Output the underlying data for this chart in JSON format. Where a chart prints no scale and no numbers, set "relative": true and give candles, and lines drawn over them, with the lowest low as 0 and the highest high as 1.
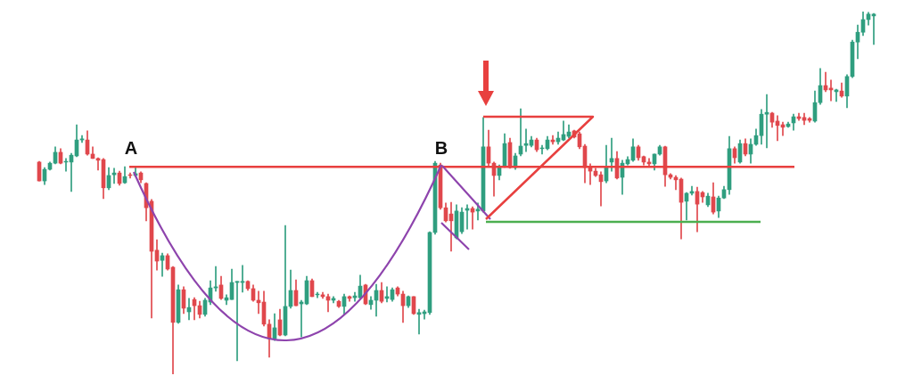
{
  "chart_data": {
    "type": "candlestick",
    "relative": true,
    "categories": [
      null,
      null,
      null,
      null,
      null,
      null,
      null,
      null,
      null,
      null,
      null,
      null,
      null,
      null,
      null,
      null,
      null,
      null,
      null,
      null,
      null,
      null,
      null,
      null,
      null,
      null,
      null,
      null,
      null,
      null,
      null,
      null,
      null,
      null,
      null,
      null,
      null,
      null,
      null,
      null,
      null,
      null,
      null,
      null,
      null,
      null,
      null,
      null,
      null,
      null,
      null,
      null,
      null,
      null,
      null,
      null,
      null,
      null,
      null,
      null,
      null,
      null,
      null,
      null,
      null,
      null,
      null,
      null,
      null,
      null,
      null,
      null,
      null,
      null,
      null,
      null,
      null,
      null,
      null,
      null,
      null,
      null,
      null,
      null,
      null,
      null,
      null,
      null,
      null,
      null,
      null,
      null,
      null,
      null,
      null,
      null,
      null,
      null,
      null,
      null,
      null,
      null,
      null,
      null,
      null,
      null,
      null,
      null,
      null,
      null,
      null,
      null,
      null,
      null,
      null,
      null,
      null,
      null,
      null,
      null,
      null,
      null,
      null,
      null,
      null,
      null,
      null,
      null,
      null,
      null,
      null,
      null,
      null,
      null,
      null,
      null,
      null,
      null,
      null,
      null,
      null,
      null,
      null,
      null,
      null,
      null,
      null,
      null,
      null,
      null,
      null,
      null,
      null,
      null,
      null,
      null,
      null
    ],
    "ohlc": [
      [
        0.585,
        0.587,
        0.533,
        0.533
      ],
      [
        0.533,
        0.57,
        0.523,
        0.565
      ],
      [
        0.565,
        0.585,
        0.563,
        0.582
      ],
      [
        0.582,
        0.627,
        0.58,
        0.612
      ],
      [
        0.612,
        0.622,
        0.58,
        0.582
      ],
      [
        0.585,
        0.595,
        0.56,
        0.587
      ],
      [
        0.585,
        0.609,
        0.504,
        0.604
      ],
      [
        0.602,
        0.688,
        0.6,
        0.646
      ],
      [
        0.646,
        0.658,
        0.639,
        0.649
      ],
      [
        0.646,
        0.671,
        0.604,
        0.607
      ],
      [
        0.607,
        0.627,
        0.595,
        0.595
      ],
      [
        0.595,
        0.597,
        0.563,
        0.59
      ],
      [
        0.592,
        0.595,
        0.484,
        0.514
      ],
      [
        0.514,
        0.57,
        0.509,
        0.548
      ],
      [
        0.55,
        0.568,
        0.526,
        0.555
      ],
      [
        0.555,
        0.56,
        0.521,
        0.526
      ],
      [
        0.528,
        0.572,
        0.526,
        0.545
      ],
      [
        0.55,
        0.555,
        0.541,
        0.548
      ],
      [
        0.548,
        0.57,
        0.545,
        0.553
      ],
      [
        0.555,
        0.558,
        0.528,
        0.536
      ],
      [
        0.526,
        0.528,
        0.423,
        0.459
      ],
      [
        0.477,
        0.482,
        0.155,
        0.339
      ],
      [
        0.342,
        0.371,
        0.287,
        0.312
      ],
      [
        0.314,
        0.334,
        0.27,
        0.327
      ],
      [
        0.327,
        0.332,
        0.287,
        0.29
      ],
      [
        0.295,
        0.297,
        0,
        0.143
      ],
      [
        0.143,
        0.246,
        0.14,
        0.233
      ],
      [
        0.233,
        0.241,
        0.167,
        0.182
      ],
      [
        0.172,
        0.209,
        0.15,
        0.184
      ],
      [
        0.206,
        0.211,
        0.15,
        0.189
      ],
      [
        0.189,
        0.201,
        0.155,
        0.165
      ],
      [
        0.165,
        0.209,
        0.16,
        0.204
      ],
      [
        0.199,
        0.258,
        0.192,
        0.238
      ],
      [
        0.238,
        0.297,
        0.229,
        0.241
      ],
      [
        0.246,
        0.27,
        0.206,
        0.209
      ],
      [
        0.204,
        0.219,
        0.192,
        0.211
      ],
      [
        0.206,
        0.29,
        0.206,
        0.253
      ],
      [
        0.253,
        0.256,
        0.037,
        0.256
      ],
      [
        0.253,
        0.3,
        0.226,
        0.256
      ],
      [
        0.256,
        0.258,
        0.231,
        0.236
      ],
      [
        0.236,
        0.246,
        0.201,
        0.204
      ],
      [
        0.204,
        0.229,
        0.167,
        0.197
      ],
      [
        0.199,
        0.229,
        0.133,
        0.138
      ],
      [
        0.138,
        0.15,
        0.047,
        0.098
      ],
      [
        0.098,
        0.167,
        0.093,
        0.128
      ],
      [
        0.15,
        0.179,
        0.106,
        0.108
      ],
      [
        0.108,
        0.41,
        0.106,
        0.187
      ],
      [
        0.187,
        0.287,
        0.182,
        0.231
      ],
      [
        0.231,
        0.26,
        0.189,
        0.189
      ],
      [
        0.194,
        0.204,
        0.103,
        0.199
      ],
      [
        0.194,
        0.27,
        0.192,
        0.258
      ],
      [
        0.258,
        0.263,
        0.214,
        0.214
      ],
      [
        0.219,
        0.226,
        0.211,
        0.221
      ],
      [
        0.219,
        0.226,
        0.209,
        0.214
      ],
      [
        0.214,
        0.221,
        0.172,
        0.204
      ],
      [
        0.204,
        0.214,
        0.197,
        0.209
      ],
      [
        0.201,
        0.204,
        0.184,
        0.187
      ],
      [
        0.187,
        0.221,
        0.165,
        0.214
      ],
      [
        0.214,
        0.216,
        0.201,
        0.209
      ],
      [
        0.211,
        0.226,
        0.201,
        0.216
      ],
      [
        0.211,
        0.273,
        0.209,
        0.243
      ],
      [
        0.246,
        0.248,
        0.192,
        0.194
      ],
      [
        0.192,
        0.214,
        0.179,
        0.204
      ],
      [
        0.204,
        0.248,
        0.16,
        0.231
      ],
      [
        0.231,
        0.253,
        0.197,
        0.201
      ],
      [
        0.209,
        0.241,
        0.199,
        0.214
      ],
      [
        0.206,
        0.238,
        0.201,
        0.233
      ],
      [
        0.238,
        0.241,
        0.216,
        0.221
      ],
      [
        0.221,
        0.229,
        0.143,
        0.189
      ],
      [
        0.189,
        0.216,
        0.184,
        0.214
      ],
      [
        0.214,
        0.214,
        0.165,
        0.167
      ],
      [
        0.165,
        0.179,
        0.111,
        0.17
      ],
      [
        0.167,
        0.177,
        0.152,
        0.172
      ],
      [
        0.17,
        0.393,
        0.165,
        0.391
      ],
      [
        0.391,
        0.587,
        0.386,
        0.582
      ],
      [
        0.577,
        0.582,
        0.455,
        0.459
      ],
      [
        0.459,
        0.472,
        0.42,
        0.423
      ],
      [
        0.442,
        0.474,
        0.339,
        0.423
      ],
      [
        0.376,
        0.467,
        0.373,
        0.45
      ],
      [
        0.393,
        0.459,
        0.388,
        0.447
      ],
      [
        0.452,
        0.467,
        0.4,
        0.457
      ],
      [
        0.457,
        0.462,
        0.4,
        0.447
      ],
      [
        0.45,
        0.472,
        0.425,
        0.455
      ],
      [
        0.45,
        0.708,
        0.447,
        0.627
      ],
      [
        0.627,
        0.673,
        0.572,
        0.582
      ],
      [
        0.582,
        0.585,
        0.491,
        0.548
      ],
      [
        0.548,
        0.577,
        0.536,
        0.572
      ],
      [
        0.572,
        0.663,
        0.57,
        0.636
      ],
      [
        0.639,
        0.651,
        0.568,
        0.57
      ],
      [
        0.57,
        0.609,
        0.565,
        0.602
      ],
      [
        0.607,
        0.732,
        0.602,
        0.629
      ],
      [
        0.631,
        0.676,
        0.614,
        0.636
      ],
      [
        0.631,
        0.656,
        0.627,
        0.646
      ],
      [
        0.646,
        0.651,
        0.614,
        0.619
      ],
      [
        0.622,
        0.631,
        0.607,
        0.624
      ],
      [
        0.622,
        0.656,
        0.619,
        0.646
      ],
      [
        0.646,
        0.658,
        0.634,
        0.641
      ],
      [
        0.641,
        0.668,
        0.634,
        0.651
      ],
      [
        0.646,
        0.698,
        0.644,
        0.661
      ],
      [
        0.656,
        0.688,
        0.651,
        0.668
      ],
      [
        0.671,
        0.673,
        0.651,
        0.654
      ],
      [
        0.663,
        0.668,
        0.622,
        0.627
      ],
      [
        0.629,
        0.634,
        0.528,
        0.57
      ],
      [
        0.57,
        0.58,
        0.523,
        0.56
      ],
      [
        0.56,
        0.568,
        0.545,
        0.548
      ],
      [
        0.55,
        0.558,
        0.464,
        0.531
      ],
      [
        0.533,
        0.631,
        0.528,
        0.572
      ],
      [
        0.585,
        0.651,
        0.56,
        0.595
      ],
      [
        0.595,
        0.614,
        0.538,
        0.541
      ],
      [
        0.543,
        0.59,
        0.496,
        0.582
      ],
      [
        0.58,
        0.6,
        0.577,
        0.592
      ],
      [
        0.59,
        0.649,
        0.587,
        0.627
      ],
      [
        0.627,
        0.631,
        0.59,
        0.597
      ],
      [
        0.6,
        0.602,
        0.577,
        0.585
      ],
      [
        0.585,
        0.595,
        0.572,
        0.58
      ],
      [
        0.58,
        0.607,
        0.563,
        0.607
      ],
      [
        0.607,
        0.631,
        0.604,
        0.627
      ],
      [
        0.627,
        0.629,
        0.518,
        0.55
      ],
      [
        0.55,
        0.553,
        0.538,
        0.543
      ],
      [
        0.543,
        0.548,
        0.509,
        0.536
      ],
      [
        0.538,
        0.541,
        0.373,
        0.474
      ],
      [
        0.477,
        0.501,
        0.425,
        0.499
      ],
      [
        0.499,
        0.518,
        0.494,
        0.504
      ],
      [
        0.504,
        0.516,
        0.393,
        0.469
      ],
      [
        0.501,
        0.504,
        0.474,
        0.489
      ],
      [
        0.467,
        0.499,
        0.462,
        0.491
      ],
      [
        0.489,
        0.528,
        0.442,
        0.447
      ],
      [
        0.45,
        0.491,
        0.432,
        0.486
      ],
      [
        0.486,
        0.518,
        0.484,
        0.509
      ],
      [
        0.509,
        0.656,
        0.496,
        0.622
      ],
      [
        0.622,
        0.627,
        0.582,
        0.597
      ],
      [
        0.585,
        0.646,
        0.582,
        0.636
      ],
      [
        0.636,
        0.649,
        0.602,
        0.607
      ],
      [
        0.607,
        0.649,
        0.582,
        0.634
      ],
      [
        0.634,
        0.676,
        0.631,
        0.658
      ],
      [
        0.658,
        0.73,
        0.634,
        0.717
      ],
      [
        0.717,
        0.771,
        0.624,
        0.722
      ],
      [
        0.72,
        0.722,
        0.681,
        0.695
      ],
      [
        0.698,
        0.713,
        0.644,
        0.686
      ],
      [
        0.688,
        0.695,
        0.658,
        0.681
      ],
      [
        0.683,
        0.695,
        0.681,
        0.69
      ],
      [
        0.693,
        0.717,
        0.673,
        0.71
      ],
      [
        0.71,
        0.72,
        0.7,
        0.705
      ],
      [
        0.708,
        0.72,
        0.688,
        0.7
      ],
      [
        0.705,
        0.708,
        0.695,
        0.7
      ],
      [
        0.698,
        0.781,
        0.695,
        0.749
      ],
      [
        0.749,
        0.843,
        0.744,
        0.796
      ],
      [
        0.796,
        0.833,
        0.779,
        0.784
      ],
      [
        0.789,
        0.811,
        0.754,
        0.784
      ],
      [
        0.779,
        0.786,
        0.752,
        0.784
      ],
      [
        0.781,
        0.803,
        0.764,
        0.767
      ],
      [
        0.767,
        0.826,
        0.735,
        0.821
      ],
      [
        0.821,
        0.921,
        0.818,
        0.916
      ],
      [
        0.916,
        0.963,
        0.87,
        0.943
      ],
      [
        0.943,
        1,
        0.934,
        0.978
      ],
      [
        0.978,
        0.998,
        0.963,
        0.993
      ],
      [
        0.988,
        0.995,
        0.909,
        0.993
      ]
    ],
    "ref_lines": [
      {
        "axis": "y",
        "value": 0.572,
        "color": "#e8403f"
      },
      {
        "axis": "y",
        "value": 0.42,
        "color": "#4caf50"
      }
    ],
    "annotations": [
      "A",
      "B"
    ]
  }
}
